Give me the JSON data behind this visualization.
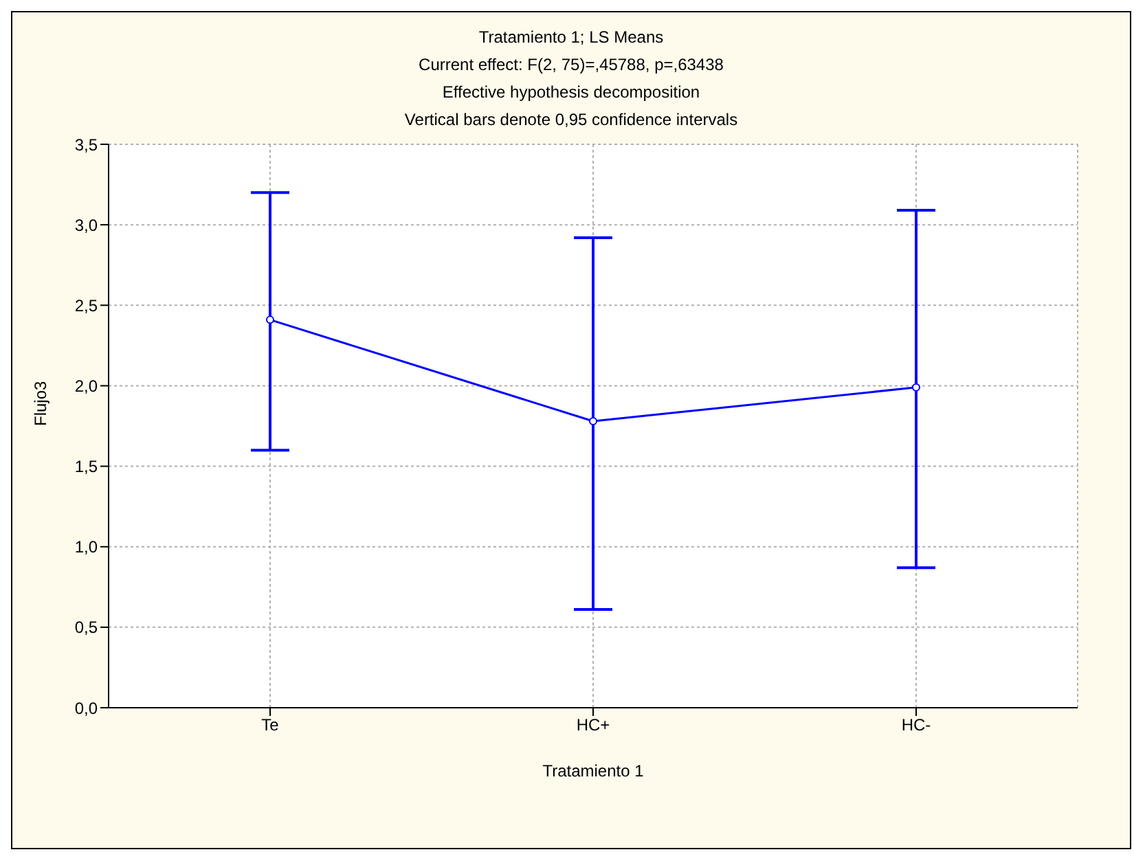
{
  "chart_data": {
    "type": "line",
    "title": "Tratamiento 1; LS Means",
    "subtitle": "Current effect: F(2, 75)=,45788, p=,63438",
    "annotations": [
      "Effective hypothesis decomposition",
      "Vertical bars denote 0,95 confidence intervals"
    ],
    "xlabel": "Tratamiento 1",
    "ylabel": "Flujo3",
    "categories": [
      "Te",
      "HC+",
      "HC-"
    ],
    "series": [
      {
        "color": "#0000ff",
        "values": [
          2.41,
          1.78,
          1.99
        ],
        "errors": [
          [
            1.6,
            3.2
          ],
          [
            0.61,
            2.92
          ],
          [
            0.87,
            3.09
          ]
        ]
      }
    ],
    "ylim": [
      0,
      3.5
    ],
    "yticks": [
      {
        "value": 0,
        "label": "0,0"
      },
      {
        "value": 0.5,
        "label": "0,5"
      },
      {
        "value": 1,
        "label": "1,0"
      },
      {
        "value": 1.5,
        "label": "1,5"
      },
      {
        "value": 2,
        "label": "2,0"
      },
      {
        "value": 2.5,
        "label": "2,5"
      },
      {
        "value": 3,
        "label": "3,0"
      },
      {
        "value": 3.5,
        "label": "3,5"
      }
    ],
    "grid": true,
    "marker": "circle",
    "line_style": "solid",
    "legend": false
  }
}
